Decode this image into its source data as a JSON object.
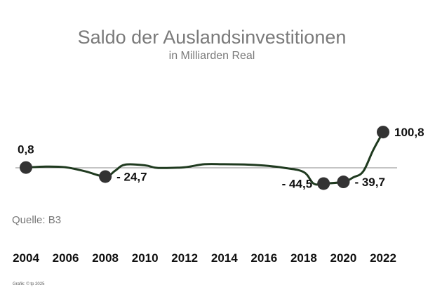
{
  "chart_data": {
    "type": "line",
    "title": "Saldo der Auslandsinvestitionen",
    "subtitle": "in Milliarden Real",
    "xlabel": "",
    "ylabel": "",
    "x_ticks": [
      "2004",
      "2006",
      "2008",
      "2010",
      "2012",
      "2014",
      "2016",
      "2018",
      "2020",
      "2022"
    ],
    "xlim": [
      2004,
      2022
    ],
    "ylim": [
      -50,
      105
    ],
    "grid": false,
    "legend": "none",
    "series": [
      {
        "x": [
          2004,
          2005,
          2006,
          2007,
          2008,
          2008.5,
          2009,
          2010,
          2010.5,
          2011,
          2012,
          2013,
          2014,
          2015,
          2016,
          2017,
          2018,
          2018.5,
          2019,
          2020,
          2020.5,
          2021,
          2021.5,
          2022
        ],
        "values": [
          0.8,
          3.5,
          1.5,
          -10,
          -24.7,
          -8,
          9,
          7,
          0.5,
          -0.5,
          1.5,
          10,
          10,
          9.5,
          6.5,
          0,
          -12,
          -44.5,
          -44.5,
          -39.7,
          -27,
          -10,
          50,
          100.8
        ]
      }
    ],
    "highlight_points": [
      {
        "year": 2004,
        "value": 0.8,
        "label": "0,8"
      },
      {
        "year": 2008,
        "value": -24.7,
        "label": "- 24,7"
      },
      {
        "year": 2019,
        "value": -44.5,
        "label": "- 44,5"
      },
      {
        "year": 2020,
        "value": -39.7,
        "label": "- 39,7"
      },
      {
        "year": 2022,
        "value": 100.8,
        "label": "100,8"
      }
    ],
    "source": "Quelle: B3",
    "credit": "Grafik: © tp 2025",
    "colors": {
      "line": "#1f3a1f",
      "marker": "#333333",
      "zero_line": "#8a8a8a",
      "title": "#7a7a7a"
    }
  }
}
